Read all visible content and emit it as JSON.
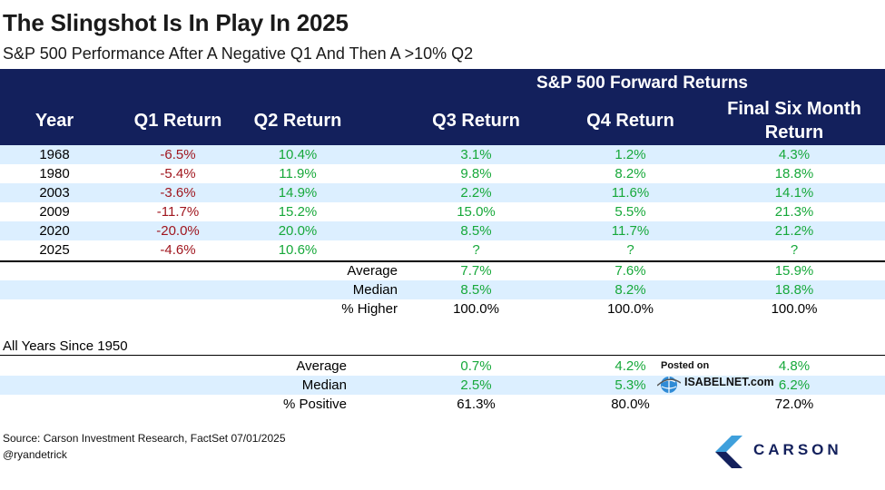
{
  "title": "The Slingshot Is In Play In 2025",
  "subtitle": "S&P 500 Performance After A Negative Q1 And Then A >10% Q2",
  "header": {
    "forward_returns": "S&P 500 Forward Returns",
    "columns": {
      "year": "Year",
      "q1": "Q1 Return",
      "q2": "Q2 Return",
      "q3": "Q3 Return",
      "q4": "Q4 Return",
      "six_line1": "Final Six Month",
      "six_line2": "Return"
    }
  },
  "rows": [
    {
      "year": "1968",
      "q1": "-6.5%",
      "q2": "10.4%",
      "q3": "3.1%",
      "q4": "1.2%",
      "six": "4.3%"
    },
    {
      "year": "1980",
      "q1": "-5.4%",
      "q2": "11.9%",
      "q3": "9.8%",
      "q4": "8.2%",
      "six": "18.8%"
    },
    {
      "year": "2003",
      "q1": "-3.6%",
      "q2": "14.9%",
      "q3": "2.2%",
      "q4": "11.6%",
      "six": "14.1%"
    },
    {
      "year": "2009",
      "q1": "-11.7%",
      "q2": "15.2%",
      "q3": "15.0%",
      "q4": "5.5%",
      "six": "21.3%"
    },
    {
      "year": "2020",
      "q1": "-20.0%",
      "q2": "20.0%",
      "q3": "8.5%",
      "q4": "11.7%",
      "six": "21.2%"
    },
    {
      "year": "2025",
      "q1": "-4.6%",
      "q2": "10.6%",
      "q3": "?",
      "q4": "?",
      "six": "?"
    }
  ],
  "summary": [
    {
      "label": "Average",
      "q3": "7.7%",
      "q4": "7.6%",
      "six": "15.9%"
    },
    {
      "label": "Median",
      "q3": "8.5%",
      "q4": "8.2%",
      "six": "18.8%"
    },
    {
      "label": "% Higher",
      "q3": "100.0%",
      "q4": "100.0%",
      "six": "100.0%"
    }
  ],
  "all_years": {
    "label": "All Years Since 1950",
    "rows": [
      {
        "label": "Average",
        "q3": "0.7%",
        "q4": "4.2%",
        "six": "4.8%"
      },
      {
        "label": "Median",
        "q3": "2.5%",
        "q4": "5.3%",
        "six": "6.2%"
      },
      {
        "label": "% Positive",
        "q3": "61.3%",
        "q4": "80.0%",
        "six": "72.0%"
      }
    ]
  },
  "watermark": {
    "posted_on": "Posted on",
    "site": "ISABELNET.com"
  },
  "footer": {
    "source": "Source: Carson Investment Research, FactSet 07/01/2025",
    "handle": "@ryandetrick"
  },
  "logo": {
    "text": "CARSON"
  },
  "colors": {
    "header_bg": "#13205c",
    "band": "#dcefff",
    "negative": "#a0161e",
    "positive": "#16a83a"
  }
}
